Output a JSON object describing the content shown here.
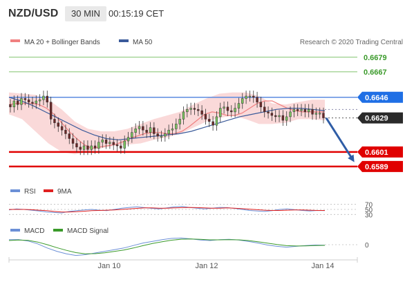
{
  "header": {
    "pair": "NZD/USD",
    "timeframe": "30 MIN",
    "time": "00:15:19 CET"
  },
  "legend_main": [
    {
      "label": "MA 20 + Bollinger Bands",
      "color": "#f08080"
    },
    {
      "label": "MA 50",
      "color": "#3a5a9a"
    }
  ],
  "credit": "Research © 2020 Trading Central",
  "legend_rsi": [
    {
      "label": "RSI",
      "color": "#6b8fd6"
    },
    {
      "label": "9MA",
      "color": "#e02020"
    }
  ],
  "legend_macd": [
    {
      "label": "MACD",
      "color": "#6b8fd6"
    },
    {
      "label": "MACD Signal",
      "color": "#3a9a2a"
    }
  ],
  "chart_data": {
    "type": "line",
    "title": "",
    "x_ticks": [
      "Jan 10",
      "Jan 12",
      "Jan 14"
    ],
    "ylim": [
      0.6577,
      0.6684
    ],
    "levels": [
      {
        "value": 0.6679,
        "label": "0.6679",
        "style": "green-line"
      },
      {
        "value": 0.6667,
        "label": "0.6667",
        "style": "green-line"
      },
      {
        "value": 0.6646,
        "label": "0.6646",
        "style": "blue-badge"
      },
      {
        "value": 0.6629,
        "label": "0.6629",
        "style": "dark-badge"
      },
      {
        "value": 0.6601,
        "label": "0.6601",
        "style": "red-badge"
      },
      {
        "value": 0.6589,
        "label": "0.6589",
        "style": "red-badge"
      }
    ],
    "price_series": [
      0.6638,
      0.6643,
      0.664,
      0.6645,
      0.6644,
      0.6642,
      0.6641,
      0.6643,
      0.6644,
      0.6647,
      0.6642,
      0.6628,
      0.6625,
      0.6622,
      0.6619,
      0.6616,
      0.6612,
      0.6608,
      0.6605,
      0.6603,
      0.6606,
      0.6603,
      0.6606,
      0.6604,
      0.6609,
      0.6611,
      0.6608,
      0.6609,
      0.6607,
      0.6606,
      0.6604,
      0.661,
      0.6613,
      0.6617,
      0.662,
      0.6622,
      0.6619,
      0.6617,
      0.6621,
      0.6616,
      0.6614,
      0.6614,
      0.6616,
      0.6619,
      0.662,
      0.6624,
      0.6628,
      0.6634,
      0.6636,
      0.6637,
      0.6636,
      0.6635,
      0.6632,
      0.6628,
      0.6626,
      0.6623,
      0.663,
      0.6637,
      0.6638,
      0.6635,
      0.6634,
      0.6637,
      0.6641,
      0.6645,
      0.6647,
      0.6647,
      0.6646,
      0.6642,
      0.6638,
      0.6634,
      0.6633,
      0.6631,
      0.663,
      0.6631,
      0.6627,
      0.663,
      0.6634,
      0.6636,
      0.6635,
      0.6636,
      0.6634,
      0.6636,
      0.6632,
      0.6633,
      0.6633,
      0.6629
    ],
    "ma20": [
      0.664,
      0.6641,
      0.6641,
      0.6641,
      0.664,
      0.6637,
      0.6632,
      0.6625,
      0.6618,
      0.6612,
      0.6607,
      0.6604,
      0.6605,
      0.6606,
      0.6607,
      0.6609,
      0.6612,
      0.6614,
      0.6616,
      0.6617,
      0.6617,
      0.6616,
      0.6616,
      0.6618,
      0.6622,
      0.6627,
      0.6632,
      0.6634,
      0.6633,
      0.6631,
      0.6631,
      0.6633,
      0.6637,
      0.6641,
      0.6643,
      0.6643,
      0.664,
      0.6637,
      0.6635,
      0.6634,
      0.6634,
      0.6634,
      0.6634
    ],
    "ma50": [
      0.6646,
      0.6643,
      0.6639,
      0.6634,
      0.6629,
      0.6624,
      0.6619,
      0.6615,
      0.6612,
      0.6611,
      0.6612,
      0.6613,
      0.6614,
      0.6615,
      0.6616,
      0.6618,
      0.6621,
      0.6624,
      0.6627,
      0.663,
      0.6632,
      0.6634,
      0.6636,
      0.6637,
      0.6637,
      0.6636,
      0.6635
    ],
    "bb_upper": [
      0.665,
      0.6649,
      0.6648,
      0.6644,
      0.6636,
      0.6626,
      0.662,
      0.6618,
      0.6618,
      0.662,
      0.6624,
      0.6628,
      0.6631,
      0.6634,
      0.664,
      0.6645,
      0.6649,
      0.665,
      0.665,
      0.6647,
      0.6641,
      0.664,
      0.6642,
      0.6644,
      0.6644
    ],
    "bb_lower": [
      0.6632,
      0.6628,
      0.6618,
      0.6608,
      0.6601,
      0.6599,
      0.6601,
      0.6604,
      0.6606,
      0.6607,
      0.6608,
      0.6611,
      0.6613,
      0.6616,
      0.6621,
      0.6626,
      0.6629,
      0.6631,
      0.6628,
      0.6624,
      0.6624,
      0.6625,
      0.6628,
      0.6628,
      0.6627
    ],
    "forecast": {
      "from": 0.6629,
      "to": 0.6595,
      "direction": "down"
    },
    "rsi": {
      "ticks": [
        "70",
        "50",
        "30"
      ],
      "rsi_values": [
        48,
        52,
        50,
        47,
        44,
        40,
        38,
        36,
        42,
        45,
        48,
        50,
        47,
        45,
        50,
        55,
        58,
        60,
        57,
        54,
        52,
        56,
        60,
        62,
        58,
        55,
        52,
        55,
        58,
        57,
        54,
        50,
        46,
        44,
        42,
        45,
        50,
        52,
        49,
        46,
        44,
        46,
        45
      ],
      "ma9_values": [
        50,
        50,
        50,
        49,
        47,
        45,
        42,
        40,
        40,
        41,
        43,
        45,
        46,
        47,
        48,
        50,
        52,
        54,
        56,
        56,
        55,
        55,
        56,
        57,
        58,
        57,
        56,
        55,
        55,
        56,
        55,
        53,
        51,
        49,
        47,
        46,
        46,
        47,
        48,
        48,
        47,
        46,
        46
      ]
    },
    "macd": {
      "ticks": [
        "0"
      ],
      "macd_values": [
        0.0003,
        0.00031,
        0.00022,
        5e-05,
        -0.0002,
        -0.0004,
        -0.00055,
        -0.00065,
        -0.0006,
        -0.0005,
        -0.0004,
        -0.0003,
        -0.0002,
        -5e-05,
        0.0001,
        0.0002,
        0.0003,
        0.00038,
        0.0004,
        0.00035,
        0.00028,
        0.00025,
        0.0003,
        0.00032,
        0.00028,
        0.0002,
        0.0001,
        -2e-05,
        -0.0001,
        -0.00015,
        -0.0001,
        -5e-05,
        -2e-05,
        -3e-05
      ],
      "signal_values": [
        0.00025,
        0.00028,
        0.00026,
        0.00016,
        0.0,
        -0.00018,
        -0.00034,
        -0.00048,
        -0.00055,
        -0.00054,
        -0.00049,
        -0.00041,
        -0.00032,
        -0.0002,
        -6e-05,
        7e-05,
        0.00018,
        0.00027,
        0.00033,
        0.00034,
        0.00032,
        0.00029,
        0.00029,
        0.0003,
        0.00029,
        0.00025,
        0.00018,
        9e-05,
        1e-05,
        -6e-05,
        -8e-05,
        -7e-05,
        -5e-05,
        -4e-05
      ]
    }
  }
}
